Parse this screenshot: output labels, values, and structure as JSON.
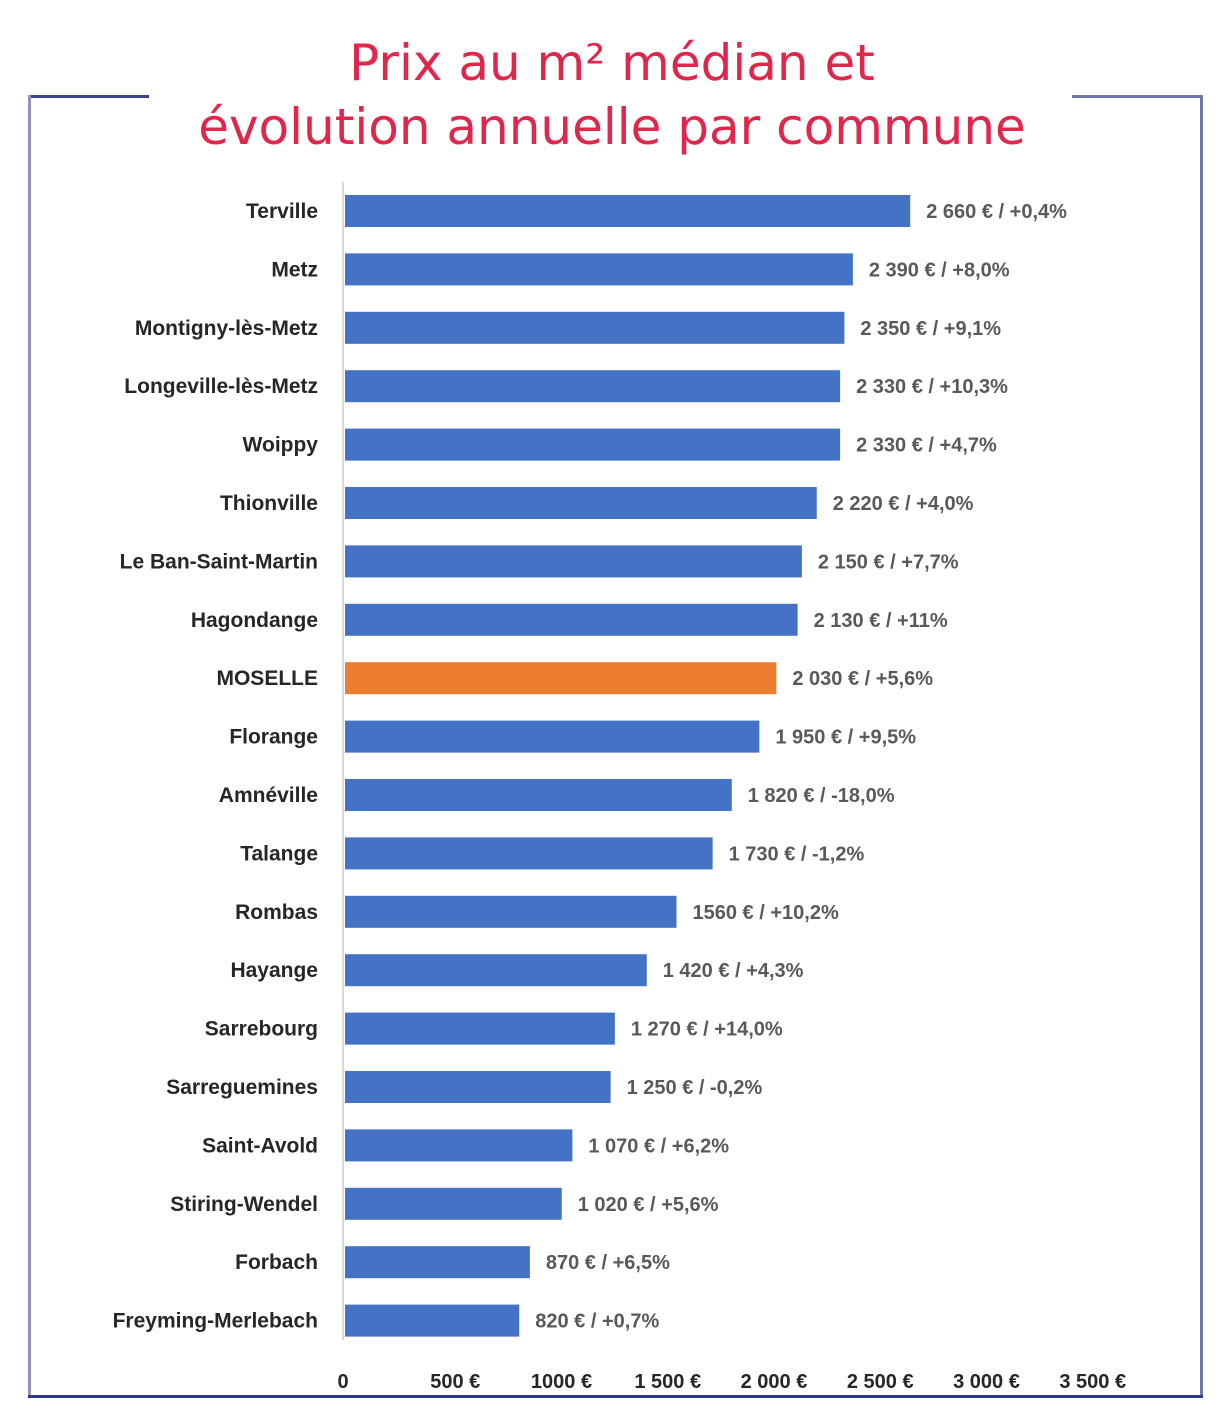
{
  "title": {
    "line1": "Prix au m² médian et",
    "line2": "évolution annuelle par commune"
  },
  "colors": {
    "title": "#e0264a",
    "bar": "#4472c4",
    "highlight": "#ed7d31",
    "frame": "#2f3884"
  },
  "chart_data": {
    "type": "bar",
    "orientation": "horizontal",
    "title": "Prix au m² médian et évolution annuelle par commune",
    "xlabel": "",
    "ylabel": "",
    "xlim": [
      0,
      3500
    ],
    "grid": false,
    "legend": "none",
    "x_ticks": [
      0,
      500,
      1000,
      1500,
      2000,
      2500,
      3000,
      3500
    ],
    "x_tick_labels": [
      "0",
      "500 €",
      "1000 €",
      "1 500 €",
      "2 000 €",
      "2 500 €",
      "3 000 €",
      "3 500 €"
    ],
    "categories": [
      "Terville",
      "Metz",
      "Montigny-lès-Metz",
      "Longeville-lès-Metz",
      "Woippy",
      "Thionville",
      "Le Ban-Saint-Martin",
      "Hagondange",
      "MOSELLE",
      "Florange",
      "Amnéville",
      "Talange",
      "Rombas",
      "Hayange",
      "Sarrebourg",
      "Sarreguemines",
      "Saint-Avold",
      "Stiring-Wendel",
      "Forbach",
      "Freyming-Merlebach"
    ],
    "series": [
      {
        "name": "Prix au m² médian (€)",
        "values": [
          2660,
          2390,
          2350,
          2330,
          2330,
          2220,
          2150,
          2130,
          2030,
          1950,
          1820,
          1730,
          1560,
          1420,
          1270,
          1250,
          1070,
          1020,
          870,
          820
        ],
        "evolution_pct": [
          0.4,
          8.0,
          9.1,
          10.3,
          4.7,
          4.0,
          7.7,
          11,
          5.6,
          9.5,
          -18.0,
          -1.2,
          10.2,
          4.3,
          14.0,
          -0.2,
          6.2,
          5.6,
          6.5,
          0.7
        ]
      }
    ],
    "highlighted_category": "MOSELLE",
    "data_labels": [
      "2 660 € / +0,4%",
      "2 390 € / +8,0%",
      "2 350 € / +9,1%",
      "2 330 € / +10,3%",
      "2 330 € / +4,7%",
      "2 220 € / +4,0%",
      "2 150 € / +7,7%",
      "2 130 € / +11%",
      "2 030 € / +5,6%",
      "1 950 € / +9,5%",
      "1 820 € / -18,0%",
      "1 730 € / -1,2%",
      "1560 € / +10,2%",
      "1 420 € / +4,3%",
      "1 270 € / +14,0%",
      "1 250 € / -0,2%",
      "1 070 € / +6,2%",
      "1 020 € / +5,6%",
      "870 € / +6,5%",
      "820 € / +0,7%"
    ]
  }
}
